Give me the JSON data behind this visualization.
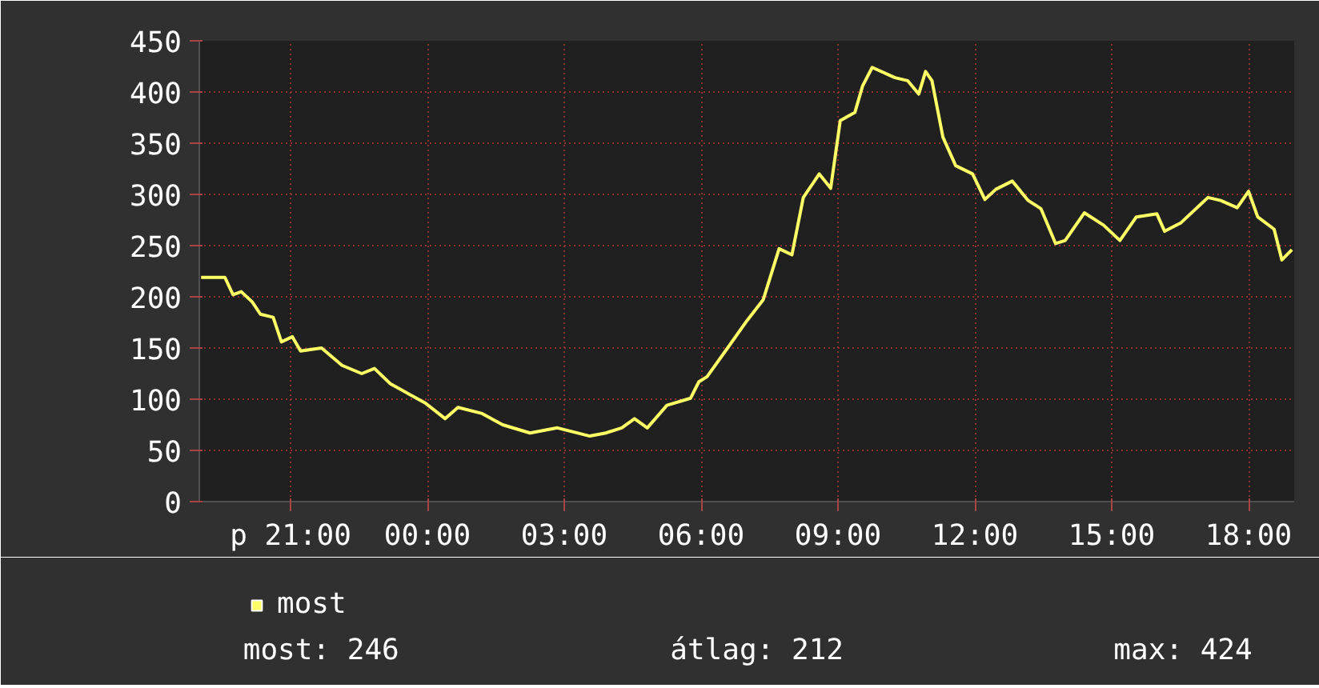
{
  "chart_data": {
    "type": "line",
    "x": [
      -4.96,
      -4.44,
      -4.26,
      -4.08,
      -3.84,
      -3.66,
      -3.38,
      -3.2,
      -2.96,
      -2.78,
      -2.32,
      -1.87,
      -1.44,
      -1.16,
      -0.81,
      -0.04,
      0.39,
      0.67,
      1.2,
      1.65,
      2.25,
      2.85,
      3.56,
      3.91,
      4.26,
      4.54,
      4.82,
      5.25,
      5.77,
      5.95,
      6.13,
      6.58,
      7.01,
      7.36,
      7.71,
      7.99,
      8.24,
      8.59,
      8.84,
      9.05,
      9.37,
      9.54,
      9.75,
      10.25,
      10.53,
      10.77,
      10.92,
      11.06,
      11.3,
      11.58,
      11.95,
      12.22,
      12.46,
      12.82,
      13.17,
      13.45,
      13.77,
      13.98,
      14.4,
      14.82,
      15.18,
      15.54,
      15.99,
      16.16,
      16.51,
      17.11,
      17.39,
      17.75,
      18.0,
      18.2,
      18.56,
      18.73,
      18.95
    ],
    "series": [
      {
        "name": "most",
        "color": "#ffff66",
        "values": [
          219,
          219,
          202,
          205,
          195,
          183,
          180,
          156,
          161,
          147,
          150,
          133,
          125,
          130,
          115,
          96,
          81,
          92,
          86,
          75,
          67,
          72,
          64,
          67,
          72,
          81,
          72,
          94,
          101,
          117,
          122,
          150,
          177,
          197,
          247,
          241,
          297,
          320,
          306,
          372,
          380,
          406,
          424,
          414,
          411,
          398,
          420,
          411,
          356,
          328,
          320,
          295,
          305,
          313,
          294,
          286,
          252,
          255,
          282,
          270,
          255,
          278,
          281,
          264,
          272,
          297,
          294,
          287,
          303,
          278,
          266,
          236,
          246
        ]
      }
    ],
    "xlim": [
      -5,
      19
    ],
    "xticks": [
      {
        "value": -3,
        "label": "p 21:00"
      },
      {
        "value": 0,
        "label": "00:00"
      },
      {
        "value": 3,
        "label": "03:00"
      },
      {
        "value": 6,
        "label": "06:00"
      },
      {
        "value": 9,
        "label": "09:00"
      },
      {
        "value": 12,
        "label": "12:00"
      },
      {
        "value": 15,
        "label": "15:00"
      },
      {
        "value": 18,
        "label": "18:00"
      }
    ],
    "ylim": [
      0,
      450
    ],
    "yticks": [
      0,
      50,
      100,
      150,
      200,
      250,
      300,
      350,
      400,
      450
    ],
    "grid": true,
    "legend": "bottom left",
    "marker": "none",
    "line_style": "solid",
    "annotations": [
      "most: 246",
      "átlag: 212",
      "max: 424"
    ]
  }
}
